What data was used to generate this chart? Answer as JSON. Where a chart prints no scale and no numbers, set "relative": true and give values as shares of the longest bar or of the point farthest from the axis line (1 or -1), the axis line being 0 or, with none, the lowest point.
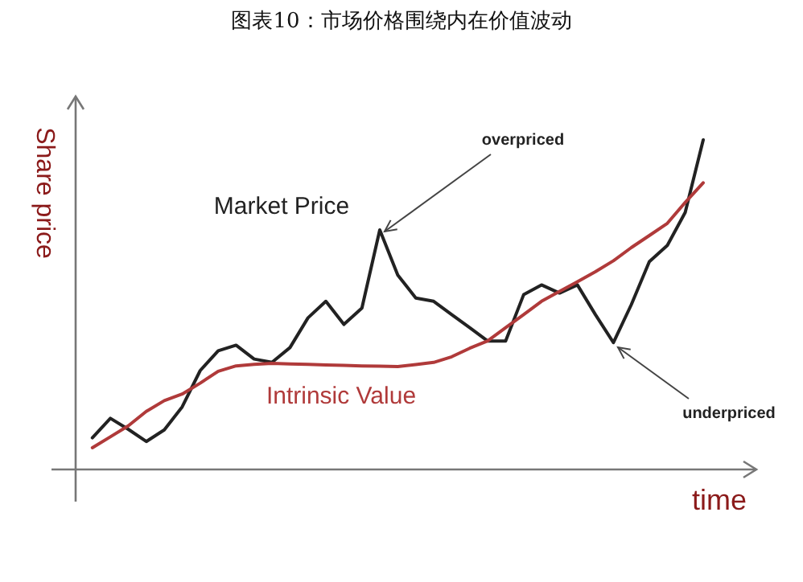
{
  "chart_data": {
    "type": "line",
    "title": "图表10：市场价格围绕内在价值波动",
    "xlabel": "time",
    "ylabel": "Share price",
    "relative": true,
    "categories": [
      null,
      null,
      null,
      null,
      null,
      null,
      null,
      null,
      null,
      null,
      null,
      null,
      null,
      null,
      null,
      null,
      null,
      null,
      null,
      null,
      null,
      null,
      null,
      null,
      null,
      null,
      null,
      null,
      null,
      null,
      null,
      null,
      null,
      null,
      null
    ],
    "series": [
      {
        "name": "Market Price",
        "color": "#222222",
        "values": [
          0.096,
          0.155,
          0.122,
          0.085,
          0.12,
          0.19,
          0.3,
          0.36,
          0.377,
          0.335,
          0.325,
          0.37,
          0.46,
          0.51,
          0.44,
          0.49,
          0.727,
          0.59,
          0.52,
          0.51,
          0.47,
          0.43,
          0.39,
          0.39,
          0.53,
          0.56,
          0.535,
          0.56,
          0.47,
          0.385,
          0.5,
          0.63,
          0.68,
          0.78,
          1.0
        ]
      },
      {
        "name": "Intrinsic Value",
        "color": "#b03a3a",
        "values": [
          0.066,
          0.099,
          0.132,
          0.176,
          0.209,
          0.229,
          0.262,
          0.298,
          0.314,
          0.319,
          0.322,
          0.32,
          0.319,
          0.317,
          0.316,
          0.314,
          0.313,
          0.312,
          0.318,
          0.325,
          0.342,
          0.368,
          0.39,
          0.43,
          0.47,
          0.51,
          0.54,
          0.57,
          0.6,
          0.633,
          0.673,
          0.71,
          0.747,
          0.81,
          0.87
        ]
      }
    ],
    "annotations": [
      "overpriced",
      "underpriced"
    ]
  }
}
